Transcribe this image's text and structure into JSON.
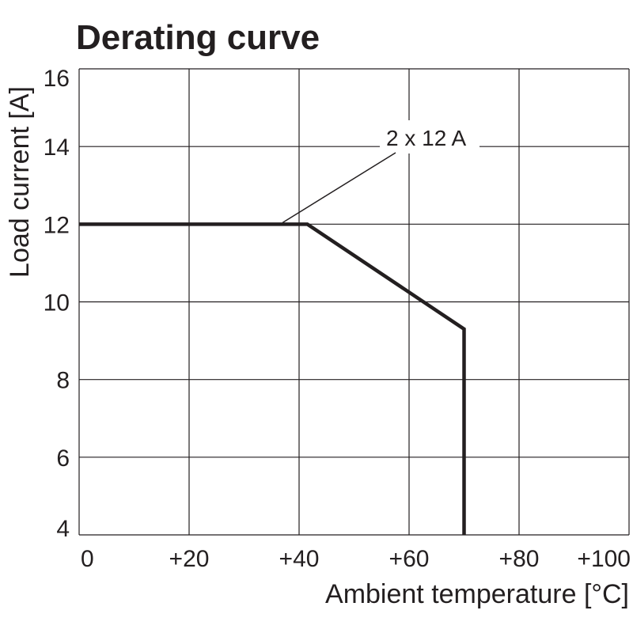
{
  "chart_data": {
    "type": "line",
    "title": "Derating curve",
    "xlabel": "Ambient temperature [°C]",
    "ylabel": "Load current [A]",
    "xlim": [
      0,
      100
    ],
    "ylim": [
      4,
      16
    ],
    "x_ticks": [
      0,
      20,
      40,
      60,
      80,
      100
    ],
    "x_tick_labels": [
      "0",
      "+20",
      "+40",
      "+60",
      "+80",
      "+100"
    ],
    "y_ticks": [
      4,
      6,
      8,
      10,
      12,
      14,
      16
    ],
    "y_tick_labels": [
      "4",
      "6",
      "8",
      "10",
      "12",
      "14",
      "16"
    ],
    "grid": true,
    "line_color": "#231f20",
    "series": [
      {
        "x": [
          0,
          41.5,
          70,
          70
        ],
        "y": [
          12,
          12,
          9.3,
          4
        ]
      }
    ],
    "annotations": [
      {
        "text": "2 x 12 A",
        "x": 37,
        "y": 12
      }
    ]
  }
}
